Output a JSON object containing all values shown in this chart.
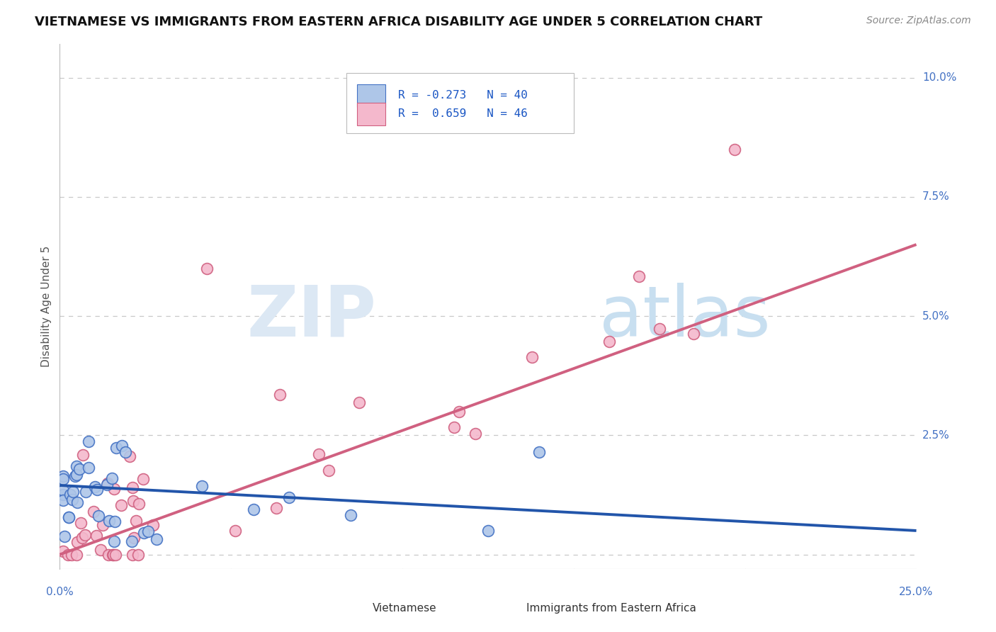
{
  "title": "VIETNAMESE VS IMMIGRANTS FROM EASTERN AFRICA DISABILITY AGE UNDER 5 CORRELATION CHART",
  "source": "Source: ZipAtlas.com",
  "ylabel": "Disability Age Under 5",
  "yticks": [
    0.0,
    0.025,
    0.05,
    0.075,
    0.1
  ],
  "ytick_labels": [
    "",
    "2.5%",
    "5.0%",
    "7.5%",
    "10.0%"
  ],
  "xlim": [
    0.0,
    0.25
  ],
  "ylim": [
    -0.003,
    0.107
  ],
  "viet_color_fill": "#aec6e8",
  "viet_color_edge": "#4472c4",
  "viet_line_color": "#2255aa",
  "ea_color_fill": "#f4b8cc",
  "ea_color_edge": "#d06080",
  "ea_line_color": "#d06080",
  "tick_color": "#4472c4",
  "grid_color": "#c8c8c8",
  "title_color": "#111111",
  "watermark_zip_color": "#dce8f4",
  "watermark_atlas_color": "#c8dff0",
  "background": "#ffffff",
  "legend_text_color": "#1a56c4",
  "viet_R": -0.273,
  "viet_N": 40,
  "ea_R": 0.659,
  "ea_N": 46,
  "viet_line_y0": 0.0145,
  "viet_line_y1": 0.005,
  "ea_line_y0": 0.0,
  "ea_line_y1": 0.065
}
